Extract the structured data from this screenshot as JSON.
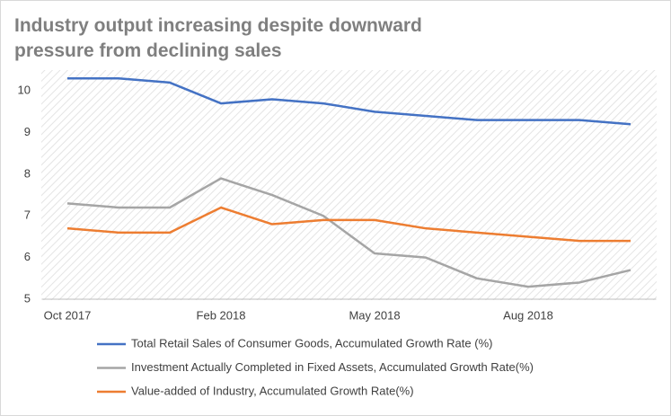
{
  "chart_data": {
    "type": "line",
    "title": [
      "Industry output increasing despite downward",
      "pressure from declining sales"
    ],
    "categories": [
      "Oct 2017",
      null,
      null,
      "Feb 2018",
      null,
      null,
      "May 2018",
      null,
      null,
      "Aug 2018",
      null,
      null
    ],
    "series": [
      {
        "name": "Total Retail Sales of Consumer Goods, Accumulated Growth Rate (%)",
        "color": "#4472c4",
        "values": [
          10.3,
          10.3,
          10.2,
          9.7,
          9.8,
          9.7,
          9.5,
          9.4,
          9.3,
          9.3,
          9.3,
          9.2
        ]
      },
      {
        "name": "Investment Actually Completed in Fixed Assets, Accumulated Growth Rate(%)",
        "color": "#a5a5a5",
        "values": [
          7.3,
          7.2,
          7.2,
          7.9,
          7.5,
          7.0,
          6.1,
          6.0,
          5.5,
          5.3,
          5.4,
          5.7
        ]
      },
      {
        "name": "Value-added of Industry, Accumulated Growth Rate(%)",
        "color": "#ed7d31",
        "values": [
          6.7,
          6.6,
          6.6,
          7.2,
          6.8,
          6.9,
          6.9,
          6.7,
          6.6,
          6.5,
          6.4,
          6.4
        ]
      }
    ],
    "ylim": [
      5,
      10.5
    ],
    "yticks": [
      5,
      6,
      7,
      8,
      9,
      10
    ],
    "grid": false
  }
}
